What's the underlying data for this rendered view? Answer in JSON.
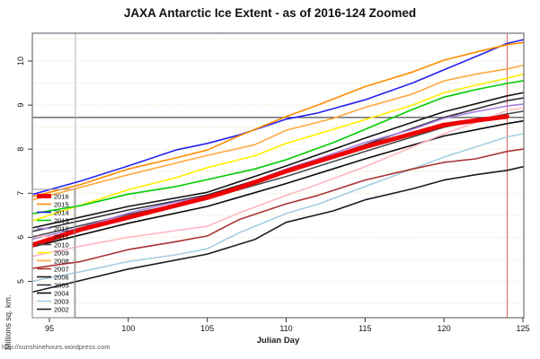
{
  "title": "JAXA Antarctic Ice Extent - as of 2016-124 Zoomed",
  "footer": "http://sunshinehours.wordpress.com",
  "chart_data": {
    "type": "line",
    "title": "JAXA Antarctic Ice Extent - as of 2016-124 Zoomed",
    "xlabel": "Julian Day",
    "ylabel": "Millions sq. km.",
    "xlim": [
      93.9,
      125.1
    ],
    "ylim": [
      4.17,
      10.63
    ],
    "x_ticks": [
      95,
      100,
      105,
      110,
      115,
      120,
      125
    ],
    "y_ticks": [
      5,
      6,
      7,
      8,
      9,
      10
    ],
    "grid": {
      "orientation": "horizontal",
      "step": 0.5,
      "color": "#e9e2b0",
      "style": "dotted"
    },
    "reference_lines": {
      "horizontal": [
        {
          "value": 8.72,
          "color": "#4d4d4d",
          "name": "current-value-line"
        }
      ],
      "vertical": [
        {
          "value": 96.65,
          "color": "#b0b0b0",
          "name": "start-marker-line"
        },
        {
          "value": 124,
          "color": "#e05c5c",
          "name": "current-day-line"
        }
      ]
    },
    "legend_position": "bottom-left-inside",
    "series": [
      {
        "name": "2016",
        "color": "#ee0000",
        "width": 5,
        "points": [
          [
            95,
            5.95
          ],
          [
            97,
            6.18
          ],
          [
            100,
            6.45
          ],
          [
            103,
            6.72
          ],
          [
            105,
            6.9
          ],
          [
            107,
            7.12
          ],
          [
            110,
            7.5
          ],
          [
            112,
            7.72
          ],
          [
            115,
            8.05
          ],
          [
            118,
            8.35
          ],
          [
            120,
            8.55
          ],
          [
            122,
            8.65
          ],
          [
            124,
            8.74
          ]
        ]
      },
      {
        "name": "2015",
        "color": "#ff8c00",
        "width": 1.6,
        "points": [
          [
            95,
            7.02
          ],
          [
            97,
            7.2
          ],
          [
            100,
            7.55
          ],
          [
            103,
            7.8
          ],
          [
            105,
            7.98
          ],
          [
            107,
            8.3
          ],
          [
            110,
            8.74
          ],
          [
            112,
            9.0
          ],
          [
            115,
            9.42
          ],
          [
            118,
            9.75
          ],
          [
            120,
            10.02
          ],
          [
            122,
            10.2
          ],
          [
            124,
            10.37
          ],
          [
            125,
            10.42
          ]
        ]
      },
      {
        "name": "2014",
        "color": "#2222ee",
        "width": 1.6,
        "points": [
          [
            95,
            7.08
          ],
          [
            97,
            7.28
          ],
          [
            100,
            7.62
          ],
          [
            103,
            7.98
          ],
          [
            105,
            8.13
          ],
          [
            107,
            8.32
          ],
          [
            110,
            8.68
          ],
          [
            112,
            8.82
          ],
          [
            115,
            9.12
          ],
          [
            118,
            9.5
          ],
          [
            120,
            9.8
          ],
          [
            122,
            10.1
          ],
          [
            124,
            10.4
          ],
          [
            125,
            10.48
          ]
        ]
      },
      {
        "name": "2013",
        "color": "#00cc00",
        "width": 1.6,
        "points": [
          [
            95,
            6.6
          ],
          [
            97,
            6.72
          ],
          [
            100,
            6.98
          ],
          [
            103,
            7.15
          ],
          [
            105,
            7.31
          ],
          [
            108,
            7.55
          ],
          [
            110,
            7.76
          ],
          [
            113,
            8.15
          ],
          [
            115,
            8.45
          ],
          [
            118,
            8.9
          ],
          [
            120,
            9.18
          ],
          [
            122,
            9.35
          ],
          [
            124,
            9.49
          ],
          [
            125,
            9.55
          ]
        ]
      },
      {
        "name": "2012",
        "color": "#a87fe0",
        "width": 1.6,
        "points": [
          [
            95,
            6.05
          ],
          [
            97,
            6.22
          ],
          [
            100,
            6.55
          ],
          [
            103,
            6.8
          ],
          [
            105,
            6.93
          ],
          [
            107,
            7.15
          ],
          [
            110,
            7.55
          ],
          [
            112,
            7.78
          ],
          [
            115,
            8.15
          ],
          [
            118,
            8.45
          ],
          [
            120,
            8.7
          ],
          [
            122,
            8.85
          ],
          [
            124,
            8.98
          ],
          [
            125,
            9.02
          ]
        ]
      },
      {
        "name": "2011",
        "color": "#ffb6c1",
        "width": 1.6,
        "points": [
          [
            95,
            5.65
          ],
          [
            97,
            5.8
          ],
          [
            100,
            6.0
          ],
          [
            103,
            6.15
          ],
          [
            105,
            6.25
          ],
          [
            107,
            6.55
          ],
          [
            110,
            6.95
          ],
          [
            112,
            7.2
          ],
          [
            115,
            7.6
          ],
          [
            118,
            8.05
          ],
          [
            120,
            8.35
          ],
          [
            122,
            8.6
          ],
          [
            124,
            8.88
          ],
          [
            125,
            8.93
          ]
        ]
      },
      {
        "name": "2010",
        "color": "#4a4a4a",
        "width": 1.6,
        "points": [
          [
            95,
            6.1
          ],
          [
            100,
            6.52
          ],
          [
            105,
            6.88
          ],
          [
            110,
            7.38
          ],
          [
            115,
            7.95
          ],
          [
            120,
            8.5
          ],
          [
            124,
            8.8
          ],
          [
            125,
            8.86
          ]
        ]
      },
      {
        "name": "2009",
        "color": "#ffee00",
        "width": 1.6,
        "points": [
          [
            95,
            6.5
          ],
          [
            98,
            6.85
          ],
          [
            100,
            7.08
          ],
          [
            103,
            7.35
          ],
          [
            105,
            7.58
          ],
          [
            108,
            7.85
          ],
          [
            110,
            8.13
          ],
          [
            113,
            8.45
          ],
          [
            115,
            8.67
          ],
          [
            118,
            9.0
          ],
          [
            120,
            9.28
          ],
          [
            122,
            9.45
          ],
          [
            124,
            9.61
          ],
          [
            125,
            9.7
          ]
        ]
      },
      {
        "name": "2008",
        "color": "#ffa940",
        "width": 1.6,
        "points": [
          [
            95,
            6.95
          ],
          [
            100,
            7.42
          ],
          [
            105,
            7.86
          ],
          [
            108,
            8.1
          ],
          [
            110,
            8.43
          ],
          [
            113,
            8.7
          ],
          [
            115,
            8.95
          ],
          [
            118,
            9.25
          ],
          [
            120,
            9.55
          ],
          [
            122,
            9.7
          ],
          [
            124,
            9.82
          ],
          [
            125,
            9.9
          ]
        ]
      },
      {
        "name": "2007",
        "color": "#aa3333",
        "width": 1.6,
        "points": [
          [
            95,
            5.35
          ],
          [
            97,
            5.45
          ],
          [
            100,
            5.72
          ],
          [
            103,
            5.9
          ],
          [
            105,
            6.03
          ],
          [
            107,
            6.4
          ],
          [
            110,
            6.76
          ],
          [
            112,
            6.95
          ],
          [
            115,
            7.3
          ],
          [
            118,
            7.55
          ],
          [
            120,
            7.7
          ],
          [
            122,
            7.78
          ],
          [
            124,
            7.95
          ],
          [
            125,
            8.0
          ]
        ]
      },
      {
        "name": "2006",
        "color": "#141414",
        "width": 1.6,
        "points": [
          [
            95,
            6.3
          ],
          [
            100,
            6.7
          ],
          [
            105,
            7.02
          ],
          [
            110,
            7.62
          ],
          [
            115,
            8.25
          ],
          [
            120,
            8.85
          ],
          [
            124,
            9.21
          ],
          [
            125,
            9.28
          ]
        ]
      },
      {
        "name": "2005",
        "color": "#30303a",
        "width": 1.6,
        "points": [
          [
            95,
            6.22
          ],
          [
            100,
            6.62
          ],
          [
            105,
            6.96
          ],
          [
            110,
            7.5
          ],
          [
            115,
            8.1
          ],
          [
            120,
            8.72
          ],
          [
            124,
            9.1
          ],
          [
            125,
            9.16
          ]
        ]
      },
      {
        "name": "2004",
        "color": "#0a0a0a",
        "width": 1.6,
        "points": [
          [
            95,
            5.88
          ],
          [
            100,
            6.32
          ],
          [
            105,
            6.7
          ],
          [
            110,
            7.22
          ],
          [
            115,
            7.78
          ],
          [
            120,
            8.3
          ],
          [
            124,
            8.58
          ],
          [
            125,
            8.64
          ]
        ]
      },
      {
        "name": "2003",
        "color": "#a6cee3",
        "width": 1.6,
        "points": [
          [
            95,
            5.08
          ],
          [
            97,
            5.22
          ],
          [
            100,
            5.45
          ],
          [
            103,
            5.6
          ],
          [
            105,
            5.74
          ],
          [
            107,
            6.1
          ],
          [
            110,
            6.54
          ],
          [
            112,
            6.75
          ],
          [
            115,
            7.15
          ],
          [
            118,
            7.55
          ],
          [
            120,
            7.82
          ],
          [
            122,
            8.05
          ],
          [
            124,
            8.28
          ],
          [
            125,
            8.35
          ]
        ]
      },
      {
        "name": "2002",
        "color": "#1c1c1c",
        "width": 1.6,
        "points": [
          [
            95,
            4.85
          ],
          [
            100,
            5.28
          ],
          [
            105,
            5.62
          ],
          [
            108,
            5.95
          ],
          [
            110,
            6.34
          ],
          [
            113,
            6.6
          ],
          [
            115,
            6.85
          ],
          [
            118,
            7.1
          ],
          [
            120,
            7.3
          ],
          [
            122,
            7.42
          ],
          [
            124,
            7.52
          ],
          [
            125,
            7.6
          ]
        ]
      }
    ]
  }
}
